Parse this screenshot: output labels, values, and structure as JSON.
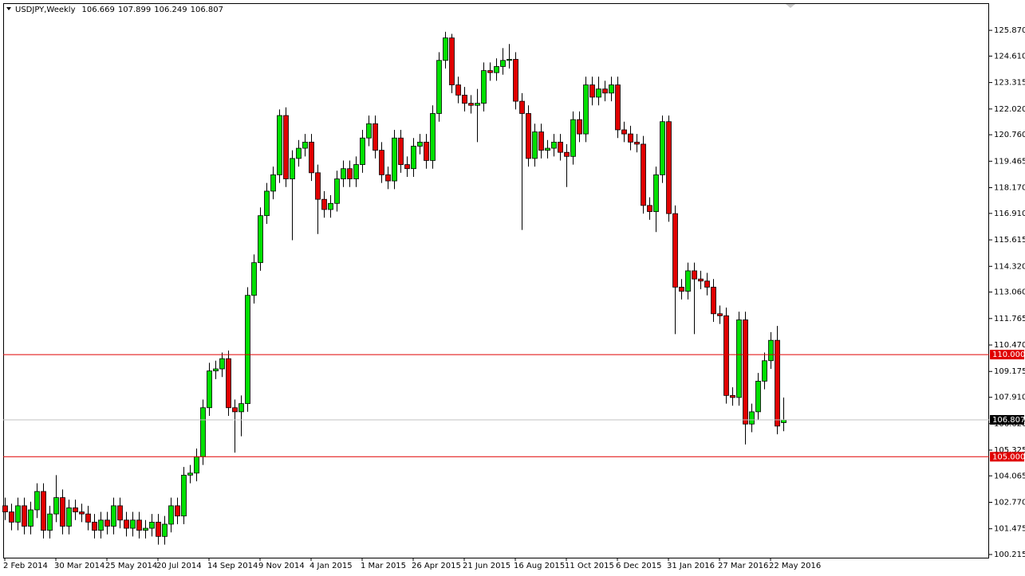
{
  "chart_data": {
    "type": "candlestick",
    "symbol": "USDJPY,Weekly",
    "up_color": "#00e000",
    "down_color": "#e00000",
    "grid": false,
    "categories": [
      "2 Feb 2014",
      null,
      null,
      null,
      null,
      null,
      null,
      null,
      "30 Mar 2014",
      null,
      null,
      null,
      null,
      null,
      null,
      null,
      "25 May 2014",
      null,
      null,
      null,
      null,
      null,
      null,
      null,
      "20 Jul 2014",
      null,
      null,
      null,
      null,
      null,
      null,
      null,
      "14 Sep 2014",
      null,
      null,
      null,
      null,
      null,
      null,
      null,
      "9 Nov 2014",
      null,
      null,
      null,
      null,
      null,
      null,
      null,
      "4 Jan 2015",
      null,
      null,
      null,
      null,
      null,
      null,
      null,
      "1 Mar 2015",
      null,
      null,
      null,
      null,
      null,
      null,
      null,
      "26 Apr 2015",
      null,
      null,
      null,
      null,
      null,
      null,
      null,
      "21 Jun 2015",
      null,
      null,
      null,
      null,
      null,
      null,
      null,
      "16 Aug 2015",
      null,
      null,
      null,
      null,
      null,
      null,
      null,
      "11 Oct 2015",
      null,
      null,
      null,
      null,
      null,
      null,
      null,
      "6 Dec 2015",
      null,
      null,
      null,
      null,
      null,
      null,
      null,
      "31 Jan 2016",
      null,
      null,
      null,
      null,
      null,
      null,
      null,
      "27 Mar 2016",
      null,
      null,
      null,
      null,
      null,
      null,
      null,
      "22 May 2016",
      null,
      null
    ],
    "open": [
      102.6,
      102.3,
      101.8,
      102.6,
      101.6,
      102.4,
      103.3,
      101.4,
      102.2,
      103.0,
      101.6,
      102.5,
      102.3,
      102.2,
      101.8,
      101.4,
      101.9,
      101.6,
      102.6,
      101.9,
      101.5,
      101.9,
      101.4,
      101.5,
      101.8,
      101.1,
      101.7,
      102.6,
      102.1,
      104.1,
      104.2,
      105.0,
      107.4,
      109.2,
      109.3,
      109.8,
      107.4,
      107.2,
      107.6,
      112.9,
      114.5,
      116.8,
      118.0,
      118.8,
      121.7,
      118.6,
      119.6,
      120.1,
      120.4,
      118.9,
      117.6,
      117.1,
      117.4,
      118.6,
      119.1,
      118.6,
      119.3,
      120.6,
      121.3,
      120.0,
      118.8,
      118.5,
      120.6,
      119.3,
      119.1,
      120.2,
      120.4,
      119.5,
      121.8,
      124.4,
      125.5,
      123.2,
      122.7,
      122.3,
      122.2,
      122.3,
      123.9,
      123.8,
      124.1,
      124.4,
      124.45,
      122.4,
      121.8,
      119.6,
      120.9,
      120.0,
      120.1,
      120.4,
      119.9,
      119.7,
      121.5,
      120.8,
      123.2,
      122.6,
      123.0,
      122.8,
      123.2,
      121.0,
      120.8,
      120.4,
      120.3,
      117.3,
      117.0,
      118.8,
      121.4,
      116.9,
      113.3,
      113.1,
      114.1,
      113.7,
      113.6,
      113.3,
      112.0,
      111.9,
      108.0,
      107.9,
      111.7,
      106.6,
      107.2,
      108.7,
      109.7,
      110.7,
      106.669
    ],
    "high": [
      103.0,
      102.7,
      103.0,
      103.0,
      102.8,
      103.7,
      103.7,
      102.6,
      104.1,
      103.4,
      102.9,
      102.9,
      102.7,
      102.6,
      102.2,
      102.3,
      102.3,
      103.0,
      103.0,
      102.3,
      102.3,
      102.3,
      101.9,
      102.2,
      102.2,
      102.1,
      103.0,
      103.0,
      104.5,
      104.6,
      105.4,
      107.8,
      109.6,
      109.7,
      110.1,
      110.2,
      107.8,
      108.0,
      113.3,
      114.9,
      117.2,
      118.4,
      119.2,
      122.0,
      122.1,
      120.0,
      120.5,
      120.8,
      120.8,
      119.3,
      118.0,
      117.8,
      119.0,
      119.5,
      119.5,
      119.7,
      121.0,
      121.7,
      121.7,
      120.4,
      119.2,
      121.0,
      121.0,
      119.7,
      120.6,
      120.8,
      120.8,
      122.2,
      124.8,
      125.8,
      125.7,
      123.6,
      123.1,
      122.7,
      123.0,
      124.3,
      124.3,
      124.5,
      125.0,
      125.2,
      124.8,
      122.8,
      122.2,
      121.3,
      121.3,
      120.5,
      120.8,
      120.8,
      120.3,
      121.9,
      121.9,
      123.6,
      123.6,
      123.6,
      123.4,
      123.6,
      123.6,
      121.4,
      121.2,
      120.8,
      120.7,
      117.7,
      119.2,
      121.7,
      121.7,
      117.3,
      113.7,
      114.5,
      114.5,
      114.1,
      114.0,
      113.7,
      112.4,
      112.3,
      108.4,
      112.1,
      112.1,
      107.6,
      109.1,
      110.1,
      111.1,
      111.4,
      107.899
    ],
    "low": [
      101.9,
      101.4,
      101.4,
      101.2,
      101.2,
      102.0,
      101.0,
      101.0,
      101.8,
      101.2,
      101.2,
      101.9,
      101.8,
      101.4,
      101.0,
      101.0,
      101.2,
      101.2,
      101.5,
      101.1,
      101.1,
      101.0,
      101.0,
      101.1,
      100.7,
      100.7,
      101.3,
      101.7,
      101.7,
      103.7,
      103.8,
      104.6,
      107.0,
      108.8,
      108.9,
      107.0,
      105.2,
      106.0,
      107.2,
      112.5,
      114.1,
      116.4,
      117.6,
      118.4,
      118.2,
      115.6,
      119.2,
      119.7,
      118.5,
      115.9,
      116.7,
      116.7,
      117.0,
      118.2,
      118.2,
      118.2,
      118.9,
      120.2,
      119.6,
      118.4,
      118.1,
      118.1,
      118.9,
      118.7,
      118.7,
      119.8,
      119.1,
      119.1,
      121.4,
      124.0,
      122.8,
      122.3,
      121.9,
      121.8,
      120.4,
      121.9,
      123.4,
      123.4,
      123.7,
      124.0,
      122.0,
      116.1,
      119.2,
      119.2,
      119.6,
      119.6,
      119.7,
      119.5,
      118.2,
      119.3,
      120.4,
      120.4,
      122.2,
      122.2,
      122.4,
      122.4,
      120.6,
      120.4,
      120.0,
      119.9,
      116.9,
      116.6,
      116.0,
      118.4,
      116.5,
      111.0,
      112.7,
      112.7,
      111.0,
      113.2,
      112.9,
      111.6,
      111.5,
      107.6,
      107.5,
      107.5,
      105.6,
      106.2,
      106.8,
      108.3,
      109.3,
      106.1,
      106.249
    ],
    "close": [
      102.3,
      101.8,
      102.6,
      101.6,
      102.4,
      103.3,
      101.4,
      102.2,
      103.0,
      101.6,
      102.5,
      102.3,
      102.2,
      101.8,
      101.4,
      101.9,
      101.6,
      102.6,
      101.9,
      101.5,
      101.9,
      101.4,
      101.5,
      101.8,
      101.1,
      101.7,
      102.6,
      102.1,
      104.1,
      104.2,
      105.0,
      107.4,
      109.2,
      109.3,
      109.8,
      107.4,
      107.2,
      107.6,
      112.9,
      114.5,
      116.8,
      118.0,
      118.8,
      121.7,
      118.6,
      119.6,
      120.1,
      120.4,
      118.9,
      117.6,
      117.1,
      117.4,
      118.6,
      119.1,
      118.6,
      119.3,
      120.6,
      121.3,
      120.0,
      118.8,
      118.5,
      120.6,
      119.3,
      119.1,
      120.2,
      120.4,
      119.5,
      121.8,
      124.4,
      125.5,
      123.2,
      122.7,
      122.3,
      122.2,
      122.3,
      123.9,
      123.8,
      124.1,
      124.4,
      124.45,
      122.4,
      121.8,
      119.6,
      120.9,
      120.0,
      120.1,
      120.4,
      119.9,
      119.7,
      121.5,
      120.8,
      123.2,
      122.6,
      123.0,
      122.8,
      123.2,
      121.0,
      120.8,
      120.4,
      120.3,
      117.3,
      117.0,
      118.8,
      121.4,
      116.9,
      113.3,
      113.1,
      114.1,
      113.7,
      113.6,
      113.3,
      112.0,
      111.9,
      108.0,
      107.9,
      111.7,
      106.6,
      107.2,
      108.7,
      109.7,
      110.7,
      106.5,
      106.807
    ],
    "ylim": [
      100.06,
      127.16
    ],
    "yticks": [
      {
        "value": 125.87,
        "label": "125.870"
      },
      {
        "value": 124.61,
        "label": "124.610"
      },
      123.315,
      {
        "value": 122.02,
        "label": "122.020"
      },
      {
        "value": 120.76,
        "label": "120.760"
      },
      119.465,
      {
        "value": 118.17,
        "label": "118.170"
      },
      {
        "value": 116.91,
        "label": "116.910"
      },
      115.615,
      {
        "value": 114.32,
        "label": "114.320"
      },
      {
        "value": 113.06,
        "label": "113.060"
      },
      111.765,
      {
        "value": 110.47,
        "label": "110.470"
      },
      109.175,
      {
        "value": 107.91,
        "label": "107.910"
      },
      {
        "value": 106.62,
        "label": "106.620"
      },
      105.325,
      104.065,
      {
        "value": 102.77,
        "label": "102.770"
      },
      101.475,
      100.215
    ],
    "levels": [
      {
        "value": 110,
        "label": "110.000"
      },
      {
        "value": 105,
        "label": "105.000"
      }
    ],
    "level_color": "#e00000",
    "price_line_color": "#c0c0c0"
  }
}
